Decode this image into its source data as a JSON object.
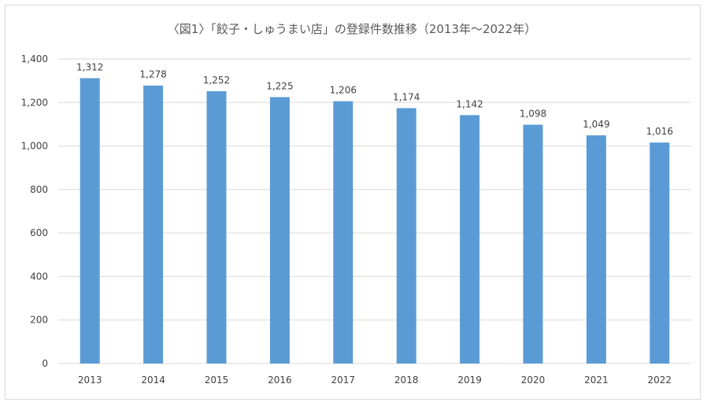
{
  "chart_data": {
    "type": "bar",
    "title": "〈図1〉「餃子・しゅうまい店」の登録件数推移（2013年～2022年）",
    "xlabel": "",
    "ylabel": "",
    "categories": [
      "2013",
      "2014",
      "2015",
      "2016",
      "2017",
      "2018",
      "2019",
      "2020",
      "2021",
      "2022"
    ],
    "values": [
      1312,
      1278,
      1252,
      1225,
      1206,
      1174,
      1142,
      1098,
      1049,
      1016
    ],
    "value_labels": [
      "1,312",
      "1,278",
      "1,252",
      "1,225",
      "1,206",
      "1,174",
      "1,142",
      "1,098",
      "1,049",
      "1,016"
    ],
    "ylim": [
      0,
      1400
    ],
    "yticks": [
      0,
      200,
      400,
      600,
      800,
      1000,
      1200,
      1400
    ],
    "ytick_labels": [
      "0",
      "200",
      "400",
      "600",
      "800",
      "1,000",
      "1,200",
      "1,400"
    ],
    "grid": true,
    "bar_color": "#5b9bd5",
    "grid_color": "#d9d9d9"
  }
}
